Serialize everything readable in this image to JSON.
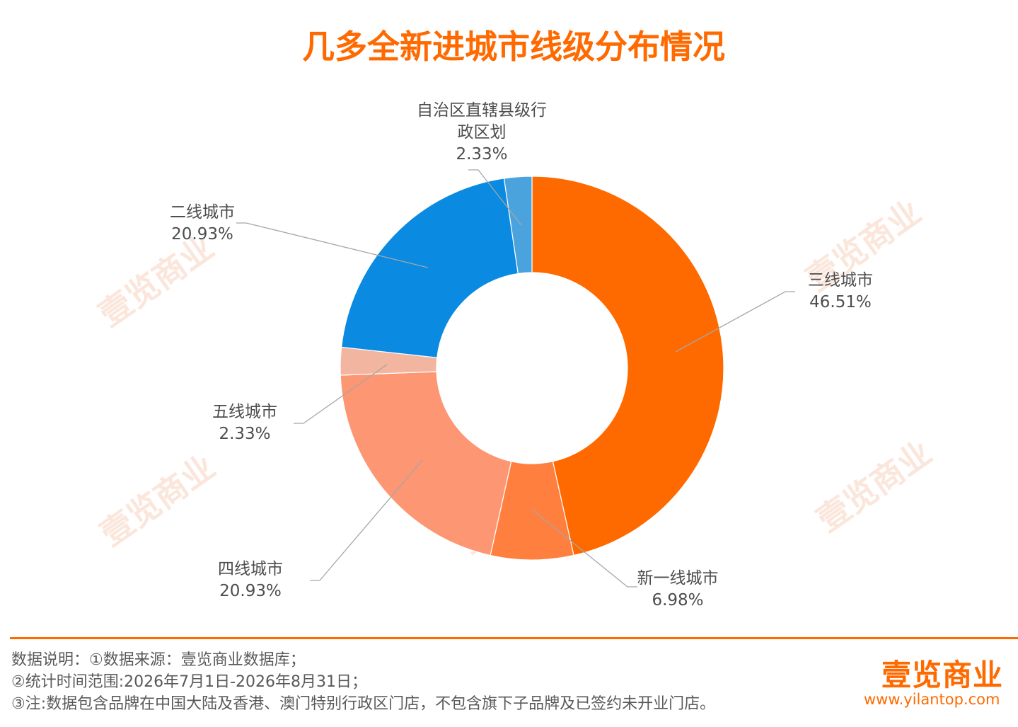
{
  "chart_data": {
    "type": "pie",
    "donut": true,
    "title": "几多全新进城市线级分布情况",
    "slices": [
      {
        "name": "三线城市",
        "value": 46.51,
        "label": "46.51%",
        "color": "#ff6a00"
      },
      {
        "name": "新一线城市",
        "value": 6.98,
        "label": "6.98%",
        "color": "#ff7f3f"
      },
      {
        "name": "四线城市",
        "value": 20.93,
        "label": "20.93%",
        "color": "#fc9673"
      },
      {
        "name": "五线城市",
        "value": 2.33,
        "label": "2.33%",
        "color": "#f2b5a0"
      },
      {
        "name": "二线城市",
        "value": 20.93,
        "label": "20.93%",
        "color": "#0a8ae0"
      },
      {
        "name": "自治区直辖县级行政区划",
        "value": 2.33,
        "label": "2.33%",
        "color": "#4aa3dd"
      }
    ]
  },
  "watermark": "壹览商业",
  "footer": {
    "notes": [
      "数据说明：①数据来源：壹览商业数据库；",
      "②统计时间范围:2026年7月1日-2026年8月31日；",
      "③注:数据包含品牌在中国大陆及香港、澳门特别行政区门店，不包含旗下子品牌及已签约未开业门店。"
    ],
    "brand_name": "壹览商业",
    "brand_url": "www.yilantop.com"
  },
  "colors": {
    "accent": "#ff6a00"
  }
}
